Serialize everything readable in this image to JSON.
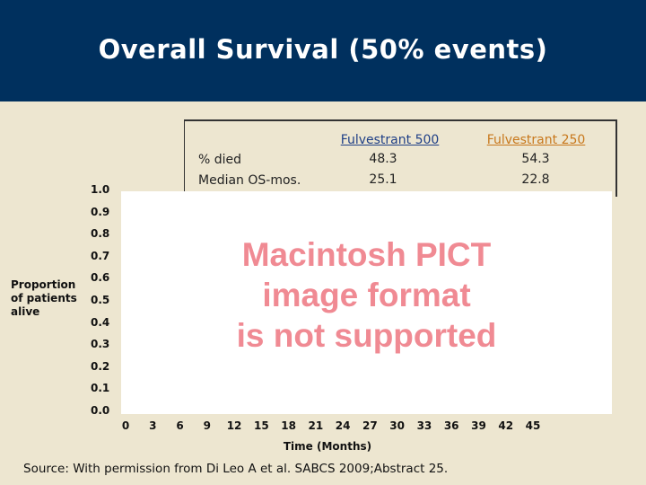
{
  "slide": {
    "title": "Overall Survival (50% events)",
    "source": "Source: With permission from Di Leo A et al. SABCS 2009;Abstract 25."
  },
  "stats_table": {
    "row_labels": [
      "% died",
      "Median OS-mos."
    ],
    "columns": [
      {
        "name": "Fulvestrant 500 ",
        "values": [
          "48.3",
          "25.1"
        ],
        "color": "#1F3F86"
      },
      {
        "name": "Fulvestrant 250",
        "values": [
          "54.3",
          "22.8"
        ],
        "color": "#C8781C"
      }
    ]
  },
  "placeholder": {
    "lines": [
      "Macintosh PICT",
      "image format",
      "is not supported"
    ],
    "color": "#F08A93"
  },
  "chart_data": {
    "type": "line",
    "title": "",
    "xlabel": "Time (Months)",
    "ylabel": "Proportion of patients alive",
    "x_ticks": [
      "0",
      "3",
      "6",
      "9",
      "12",
      "15",
      "18",
      "21",
      "24",
      "27",
      "30",
      "33",
      "36",
      "39",
      "42",
      "45"
    ],
    "y_ticks": [
      "0.0",
      "0.1",
      "0.2",
      "0.3",
      "0.4",
      "0.5",
      "0.6",
      "0.7",
      "0.8",
      "0.9",
      "1.0"
    ],
    "xlim": [
      0,
      45
    ],
    "ylim": [
      0.0,
      1.0
    ],
    "grid": false,
    "series": []
  },
  "colors": {
    "header_bg": "#00305E",
    "slide_bg": "#EDE6D0"
  }
}
